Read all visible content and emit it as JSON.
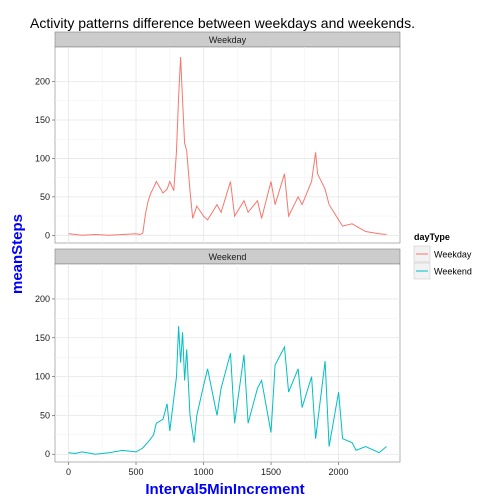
{
  "chart_data": {
    "type": "line",
    "title": "Activity patterns difference between weekdays and weekends.",
    "xlabel": "Interval5MinIncrement",
    "ylabel": "meanSteps",
    "xlim": [
      -100,
      2455
    ],
    "ylim": [
      -10,
      245
    ],
    "x_ticks": [
      0,
      500,
      1000,
      1500,
      2000
    ],
    "y_ticks": [
      0,
      50,
      100,
      150,
      200
    ],
    "grid": true,
    "legend": {
      "title": "dayType",
      "position": "right",
      "entries": [
        "Weekday",
        "Weekend"
      ]
    },
    "series": [
      {
        "name": "Weekday",
        "color": "#f8766d",
        "x": [
          0,
          50,
          100,
          200,
          300,
          400,
          500,
          530,
          550,
          570,
          590,
          610,
          630,
          650,
          700,
          730,
          750,
          780,
          800,
          815,
          830,
          845,
          860,
          875,
          900,
          920,
          950,
          1000,
          1030,
          1100,
          1130,
          1200,
          1230,
          1300,
          1330,
          1400,
          1430,
          1500,
          1530,
          1600,
          1630,
          1700,
          1730,
          1800,
          1830,
          1845,
          1900,
          1930,
          2000,
          2030,
          2100,
          2200,
          2300,
          2355
        ],
        "values": [
          2,
          1,
          0,
          1,
          0,
          1,
          2,
          1,
          3,
          28,
          45,
          55,
          62,
          70,
          55,
          60,
          70,
          58,
          110,
          180,
          232,
          175,
          120,
          110,
          58,
          22,
          38,
          25,
          20,
          40,
          30,
          70,
          25,
          45,
          30,
          45,
          22,
          70,
          40,
          80,
          25,
          50,
          40,
          70,
          108,
          80,
          60,
          40,
          20,
          12,
          15,
          5,
          2,
          1
        ]
      },
      {
        "name": "Weekend",
        "color": "#00bfc4",
        "x": [
          0,
          50,
          100,
          200,
          300,
          400,
          500,
          550,
          600,
          630,
          650,
          700,
          730,
          750,
          800,
          815,
          830,
          845,
          860,
          875,
          900,
          930,
          950,
          1000,
          1030,
          1100,
          1130,
          1200,
          1230,
          1300,
          1330,
          1400,
          1430,
          1500,
          1530,
          1600,
          1630,
          1700,
          1730,
          1800,
          1830,
          1900,
          1930,
          2000,
          2030,
          2100,
          2130,
          2200,
          2300,
          2355
        ],
        "values": [
          2,
          1,
          3,
          0,
          2,
          5,
          3,
          8,
          18,
          25,
          40,
          45,
          65,
          30,
          100,
          165,
          118,
          157,
          95,
          135,
          50,
          15,
          50,
          88,
          110,
          50,
          85,
          130,
          40,
          128,
          40,
          85,
          95,
          28,
          115,
          138,
          80,
          110,
          60,
          100,
          20,
          120,
          10,
          80,
          20,
          15,
          5,
          10,
          2,
          10
        ]
      }
    ],
    "panels": [
      "Weekday",
      "Weekend"
    ]
  }
}
